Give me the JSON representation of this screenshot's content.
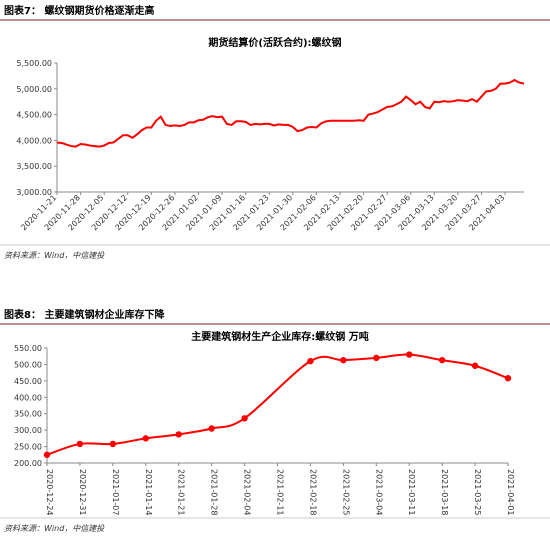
{
  "figures": [
    {
      "heading": "图表7： 螺纹钢期货价格逐渐走高",
      "source": "资料来源：Wind，中信建投"
    },
    {
      "heading": "图表8： 主要建筑钢材企业库存下降",
      "source": "资料来源：Wind，中信建投"
    }
  ],
  "chart_data": [
    {
      "type": "line",
      "title": "期货结算价(活跃合约):螺纹钢",
      "color": "#ff0000",
      "categories": [
        "2020-11-21",
        null,
        null,
        null,
        null,
        "2020-11-28",
        null,
        null,
        null,
        null,
        "2020-12-05",
        null,
        null,
        null,
        null,
        "2020-12-12",
        null,
        null,
        null,
        null,
        "2020-12-19",
        null,
        null,
        null,
        null,
        "2020-12-26",
        null,
        null,
        null,
        null,
        "2021-01-02",
        null,
        null,
        null,
        null,
        "2021-01-09",
        null,
        null,
        null,
        null,
        "2021-01-16",
        null,
        null,
        null,
        null,
        "2021-01-23",
        null,
        null,
        null,
        null,
        "2021-01-30",
        null,
        null,
        null,
        null,
        "2021-02-06",
        null,
        null,
        null,
        null,
        "2021-02-13",
        null,
        null,
        null,
        null,
        "2021-02-20",
        null,
        null,
        null,
        null,
        "2021-02-27",
        null,
        null,
        null,
        null,
        "2021-03-06",
        null,
        null,
        null,
        null,
        "2021-03-13",
        null,
        null,
        null,
        null,
        "2021-03-20",
        null,
        null,
        null,
        null,
        "2021-03-27",
        null,
        null,
        null,
        null,
        "2021-04-03",
        null,
        null,
        null,
        null
      ],
      "values": [
        3960,
        3950,
        3920,
        3890,
        3880,
        3930,
        3920,
        3900,
        3890,
        3880,
        3900,
        3950,
        3960,
        4030,
        4100,
        4100,
        4050,
        4120,
        4200,
        4250,
        4250,
        4380,
        4460,
        4300,
        4280,
        4290,
        4280,
        4300,
        4350,
        4350,
        4390,
        4400,
        4450,
        4470,
        4450,
        4460,
        4320,
        4300,
        4370,
        4370,
        4360,
        4300,
        4320,
        4310,
        4320,
        4320,
        4290,
        4310,
        4300,
        4300,
        4260,
        4180,
        4200,
        4250,
        4260,
        4250,
        4330,
        4370,
        4380,
        4380,
        4380,
        4380,
        4380,
        4380,
        4390,
        4380,
        4500,
        4520,
        4550,
        4600,
        4650,
        4660,
        4700,
        4750,
        4850,
        4780,
        4700,
        4750,
        4650,
        4620,
        4750,
        4740,
        4760,
        4750,
        4760,
        4780,
        4770,
        4760,
        4800,
        4750,
        4850,
        4950,
        4960,
        5000,
        5100,
        5100,
        5120,
        5170,
        5120,
        5100
      ],
      "ylim": [
        3000,
        5500
      ],
      "yticks": [
        {
          "value": 3000,
          "label": "3,000.00"
        },
        {
          "value": 3500,
          "label": "3,500.00"
        },
        {
          "value": 4000,
          "label": "4,000.00"
        },
        {
          "value": 4500,
          "label": "4,500.00"
        },
        {
          "value": 5000,
          "label": "5,000.00"
        },
        {
          "value": 5500,
          "label": "5,500.00"
        }
      ]
    },
    {
      "type": "line",
      "title": "主要建筑钢材生产企业库存:螺纹钢 万吨",
      "color": "#ff0000",
      "markers": true,
      "x": [
        "2020-12-24",
        "2020-12-31",
        "2021-01-07",
        "2021-01-14",
        "2021-01-21",
        "2021-01-28",
        "2021-02-04",
        "2021-02-18",
        "2021-02-25",
        "2021-03-04",
        "2021-03-11",
        "2021-03-18",
        "2021-03-25",
        "2021-04-01"
      ],
      "values": [
        225,
        258,
        258,
        275,
        287,
        305,
        336,
        510,
        513,
        520,
        530,
        513,
        496,
        458
      ],
      "xlim": [
        "2020-12-24",
        "2021-04-01"
      ],
      "xticks": [
        "2020-12-24",
        "2020-12-31",
        "2021-01-07",
        "2021-01-14",
        "2021-01-21",
        "2021-01-28",
        "2021-02-04",
        "2021-02-11",
        "2021-02-18",
        "2021-02-25",
        "2021-03-04",
        "2021-03-11",
        "2021-03-18",
        "2021-03-25",
        "2021-04-01"
      ],
      "ylim": [
        200,
        550
      ],
      "yticks": [
        {
          "value": 200,
          "label": "200.00"
        },
        {
          "value": 250,
          "label": "250.00"
        },
        {
          "value": 300,
          "label": "300.00"
        },
        {
          "value": 350,
          "label": "350.00"
        },
        {
          "value": 400,
          "label": "400.00"
        },
        {
          "value": 450,
          "label": "450.00"
        },
        {
          "value": 500,
          "label": "500.00"
        },
        {
          "value": 550,
          "label": "550.00"
        }
      ]
    }
  ]
}
